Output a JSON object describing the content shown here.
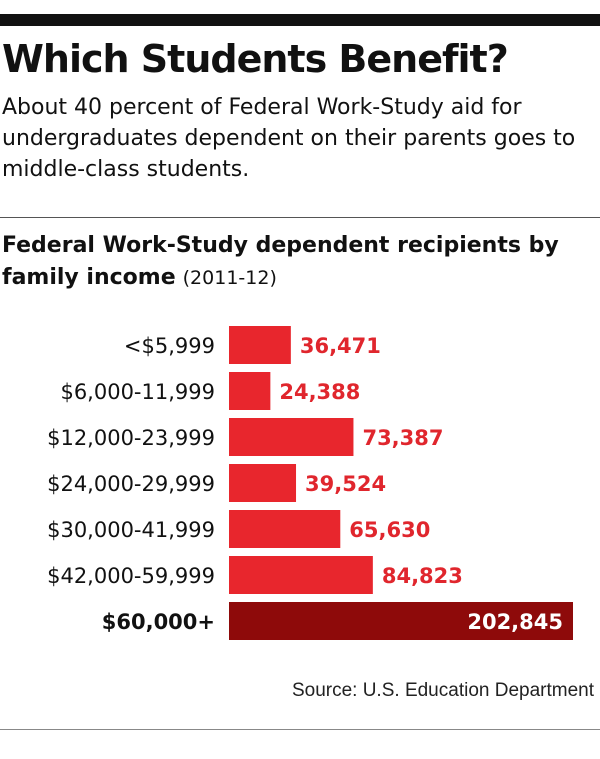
{
  "header": {
    "title": "Which Students Benefit?",
    "subtitle": "About 40 percent of Federal Work-Study aid for undergraduates dependent on their parents goes to middle-class students."
  },
  "chart_heading": {
    "bold_text": "Federal Work-Study dependent recipients by family income",
    "years": "(2011-12)"
  },
  "source": "Source: U.S. Education Department",
  "colors": {
    "bar": "#e8262d",
    "highlight_bar": "#8e0a0a",
    "value_label": "#e0262d",
    "highlight_label": "#ffffff"
  },
  "chart_data": {
    "type": "bar",
    "orientation": "horizontal",
    "title": "Federal Work-Study dependent recipients by family income (2011-12)",
    "categories": [
      "<$5,999",
      "$6,000-11,999",
      "$12,000-23,999",
      "$24,000-29,999",
      "$30,000-41,999",
      "$42,000-59,999",
      "$60,000+"
    ],
    "values": [
      36471,
      24388,
      73387,
      39524,
      65630,
      84823,
      202845
    ],
    "value_labels": [
      "36,471",
      "24,388",
      "73,387",
      "39,524",
      "65,630",
      "84,823",
      "202,845"
    ],
    "highlight": "$60,000+",
    "xlim": [
      0,
      202845
    ],
    "grid": false,
    "legend": "none"
  }
}
